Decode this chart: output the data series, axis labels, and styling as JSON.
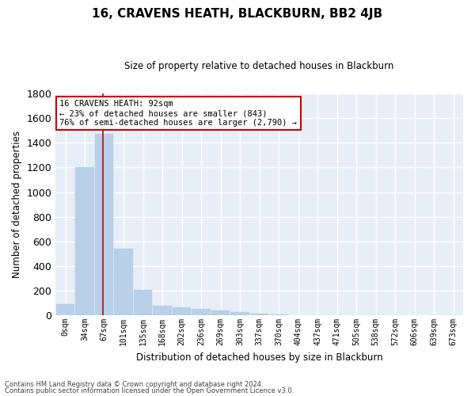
{
  "title": "16, CRAVENS HEATH, BLACKBURN, BB2 4JB",
  "subtitle": "Size of property relative to detached houses in Blackburn",
  "xlabel": "Distribution of detached houses by size in Blackburn",
  "ylabel": "Number of detached properties",
  "bar_color": "#b8d0e8",
  "bar_edge_color": "#b8d0e8",
  "background_color": "#e8eef8",
  "grid_color": "#ffffff",
  "categories": [
    "0sqm",
    "34sqm",
    "67sqm",
    "101sqm",
    "135sqm",
    "168sqm",
    "202sqm",
    "236sqm",
    "269sqm",
    "303sqm",
    "337sqm",
    "370sqm",
    "404sqm",
    "437sqm",
    "471sqm",
    "505sqm",
    "538sqm",
    "572sqm",
    "606sqm",
    "639sqm",
    "673sqm"
  ],
  "values": [
    90,
    1200,
    1470,
    540,
    205,
    75,
    65,
    50,
    37,
    25,
    15,
    5,
    2,
    0,
    0,
    0,
    0,
    0,
    0,
    0,
    0
  ],
  "ylim": [
    0,
    1800
  ],
  "yticks": [
    0,
    200,
    400,
    600,
    800,
    1000,
    1200,
    1400,
    1600,
    1800
  ],
  "vline_x": 1.925,
  "vline_color": "#cc0000",
  "annotation_line1": "16 CRAVENS HEATH: 92sqm",
  "annotation_line2": "← 23% of detached houses are smaller (843)",
  "annotation_line3": "76% of semi-detached houses are larger (2,790) →",
  "annotation_box_color": "#ffffff",
  "annotation_box_edge_color": "#cc0000",
  "footer_line1": "Contains HM Land Registry data © Crown copyright and database right 2024.",
  "footer_line2": "Contains public sector information licensed under the Open Government Licence v3.0."
}
